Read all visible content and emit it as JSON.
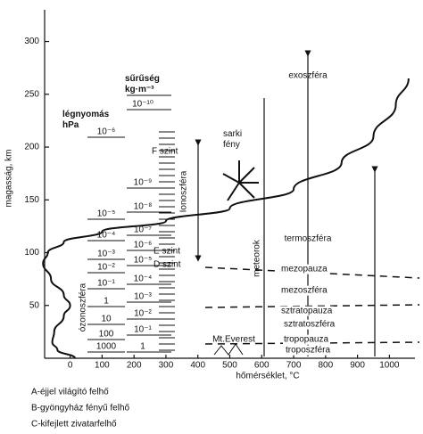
{
  "chart_data": {
    "type": "line",
    "xlabel": "hőmérséklet, °C",
    "ylabel": "magasság, km",
    "xlim": [
      -80,
      1080
    ],
    "ylim": [
      0,
      330
    ],
    "xticks": [
      0,
      100,
      200,
      300,
      400,
      500,
      600,
      700,
      800,
      900,
      1000
    ],
    "yticks": [
      50,
      100,
      150,
      200,
      250,
      300
    ],
    "series": [
      {
        "color": "#111111",
        "x": [
          15,
          -40,
          -56,
          -50,
          -20,
          0,
          -20,
          -60,
          -85,
          -70,
          -20,
          100,
          300,
          500,
          700,
          850,
          950,
          1020,
          1060
        ],
        "values": [
          0,
          8,
          15,
          25,
          40,
          50,
          60,
          75,
          90,
          100,
          110,
          120,
          130,
          142,
          160,
          185,
          210,
          240,
          265
        ]
      }
    ],
    "pressure": {
      "title": "légnyomás\nhPa",
      "labels": [
        "10⁻⁶",
        "10⁻⁵",
        "10⁻⁴",
        "10⁻³",
        "10⁻²",
        "10⁻¹",
        "1",
        "10",
        "100",
        "1000"
      ]
    },
    "density": {
      "title": "sűrűség\nkg·m⁻³",
      "labels": [
        "10⁻¹⁰",
        "10⁻⁹",
        "10⁻⁸",
        "10⁻⁷",
        "10⁻⁶",
        "10⁻⁵",
        "10⁻⁴",
        "10⁻³",
        "10⁻²",
        "10⁻¹",
        "1"
      ]
    },
    "annotations": [
      "exoszféra",
      "termoszféra",
      "mezopauza",
      "mezoszféra",
      "sztratopauza",
      "sztratoszféra",
      "tropopauza",
      "troposzféra",
      "Mt.Everest",
      "meteorok",
      "sarki\nfény",
      "Ionoszféra",
      "F szint",
      "E szint",
      "D szint",
      "ózonoszféra"
    ],
    "notes": [
      "A-éjjel világító felhő",
      "B-gyöngyház fényű felhő",
      "C-kifejlett zivatarfelhő"
    ]
  }
}
